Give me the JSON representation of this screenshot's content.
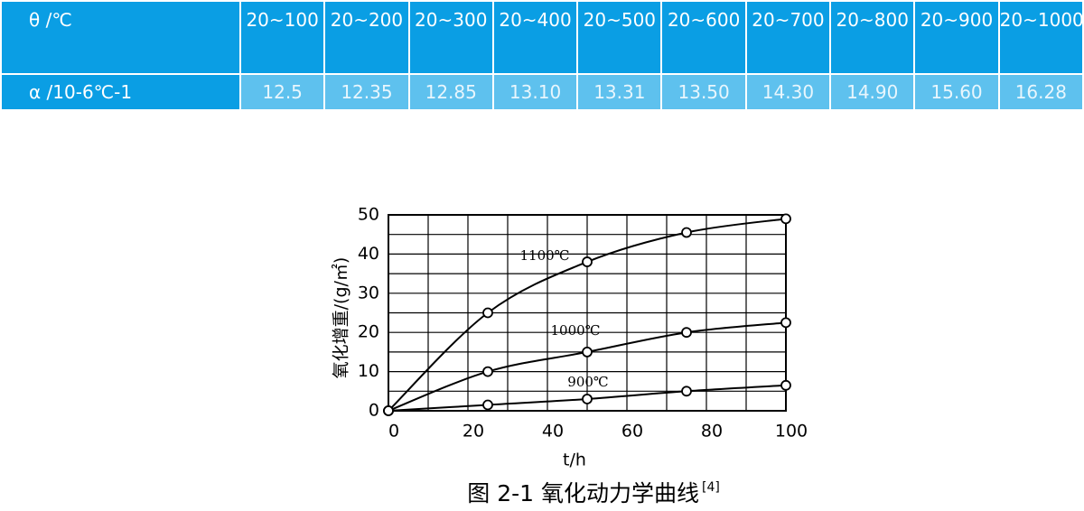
{
  "table": {
    "rows": [
      [
        "θ /℃",
        "20~100",
        "20~200",
        "20~300",
        "20~400",
        "20~500",
        "20~600",
        "20~700",
        "20~800",
        "20~900",
        "20~1000"
      ],
      [
        "α /10-6℃-1",
        "12.5",
        "12.35",
        "12.85",
        "13.10",
        "13.31",
        "13.50",
        "14.30",
        "14.90",
        "15.60",
        "16.28"
      ]
    ]
  },
  "chart_data": {
    "type": "line",
    "x_label": "t/h",
    "y_label": "氧化增重/(g/㎡)",
    "x": [
      0,
      25,
      50,
      75,
      100
    ],
    "series": [
      {
        "name": "1100℃",
        "color": "#000000",
        "values": [
          0,
          25,
          38,
          45.5,
          49
        ]
      },
      {
        "name": "1000℃",
        "color": "#000000",
        "values": [
          0,
          10,
          15,
          20,
          22.5
        ]
      },
      {
        "name": "900℃",
        "color": "#000000",
        "values": [
          0,
          1.5,
          3,
          5,
          6.5
        ]
      }
    ],
    "xlim": [
      0,
      100
    ],
    "xticks": [
      0,
      20,
      40,
      60,
      80,
      100
    ],
    "ylim": [
      0,
      50
    ],
    "yticks": [
      0,
      10,
      20,
      30,
      40,
      50
    ],
    "grid": true
  },
  "caption": {
    "text": "图 2-1 氧化动力学曲线",
    "ref": "[4]"
  }
}
